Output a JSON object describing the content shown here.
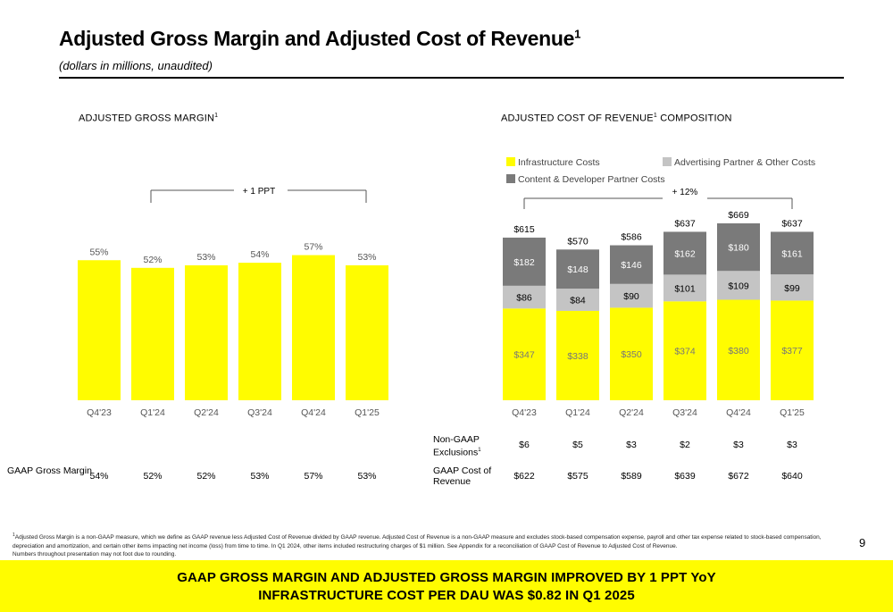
{
  "header": {
    "title": "Adjusted Gross Margin and Adjusted Cost of Revenue",
    "title_sup": "1",
    "subtitle": "(dollars in millions, unaudited)"
  },
  "left_section": {
    "title": "ADJUSTED GROSS MARGIN",
    "title_sup": "1"
  },
  "right_section": {
    "title_a": "ADJUSTED COST OF REVENUE",
    "title_sup": "1",
    "title_b": " COMPOSITION"
  },
  "colors": {
    "yellow": "#fffc00",
    "light_gray": "#c4c4c4",
    "dark_gray": "#7a7a7a"
  },
  "chart_data": [
    {
      "type": "bar",
      "categories": [
        "Q4'23",
        "Q1'24",
        "Q2'24",
        "Q3'24",
        "Q4'24",
        "Q1'25"
      ],
      "values": [
        55,
        52,
        53,
        54,
        57,
        53
      ],
      "value_labels": [
        "55%",
        "52%",
        "53%",
        "54%",
        "57%",
        "53%"
      ],
      "bracket_label": "+ 1 PPT",
      "bar_color": "#fffc00"
    },
    {
      "type": "bar",
      "stacked": true,
      "categories": [
        "Q4'23",
        "Q1'24",
        "Q2'24",
        "Q3'24",
        "Q4'24",
        "Q1'25"
      ],
      "series": [
        {
          "name": "Infrastructure Costs",
          "values": [
            347,
            338,
            350,
            374,
            380,
            377
          ],
          "labels": [
            "$347",
            "$338",
            "$350",
            "$374",
            "$380",
            "$377"
          ],
          "color": "#fffc00"
        },
        {
          "name": "Advertising Partner & Other Costs",
          "values": [
            86,
            84,
            90,
            101,
            109,
            99
          ],
          "labels": [
            "$86",
            "$84",
            "$90",
            "$101",
            "$109",
            "$99"
          ],
          "color": "#c4c4c4"
        },
        {
          "name": "Content & Developer Partner Costs",
          "values": [
            182,
            148,
            146,
            162,
            180,
            161
          ],
          "labels": [
            "$182",
            "$148",
            "$146",
            "$162",
            "$180",
            "$161"
          ],
          "color": "#7a7a7a"
        }
      ],
      "totals": [
        615,
        570,
        586,
        637,
        669,
        637
      ],
      "total_labels": [
        "$615",
        "$570",
        "$586",
        "$637",
        "$669",
        "$637"
      ],
      "bracket_label": "+ 12%"
    }
  ],
  "tables": {
    "gaap_gross_margin": {
      "label": "GAAP Gross Margin",
      "values": [
        "54%",
        "52%",
        "52%",
        "53%",
        "57%",
        "53%"
      ]
    },
    "non_gaap_exclusions": {
      "label": "Non-GAAP Exclusions",
      "label_sup": "1",
      "values": [
        "$6",
        "$5",
        "$3",
        "$2",
        "$3",
        "$3"
      ]
    },
    "gaap_cost_of_revenue": {
      "label": "GAAP Cost of Revenue",
      "values": [
        "$622",
        "$575",
        "$589",
        "$639",
        "$672",
        "$640"
      ]
    }
  },
  "footnote": {
    "sup": "1",
    "text": "Adjusted Gross Margin is a non-GAAP measure, which we define as GAAP revenue less Adjusted Cost of Revenue divided by GAAP revenue. Adjusted Cost of Revenue is a non-GAAP measure and excludes stock-based compensation expense, payroll and other tax expense related to stock-based compensation, depreciation and amortization, and certain other items impacting net income (loss) from time to time. In Q1 2024, other items included restructuring charges of $1 million. See Appendix for a reconciliation of GAAP Cost of Revenue to Adjusted Cost of Revenue.",
    "line2": "Numbers throughout presentation may not foot due to rounding."
  },
  "page_number": "9",
  "banner": {
    "line1": "GAAP GROSS MARGIN AND ADJUSTED GROSS MARGIN IMPROVED BY 1 PPT YoY",
    "line2": "INFRASTRUCTURE COST PER DAU WAS $0.82 IN Q1 2025"
  }
}
